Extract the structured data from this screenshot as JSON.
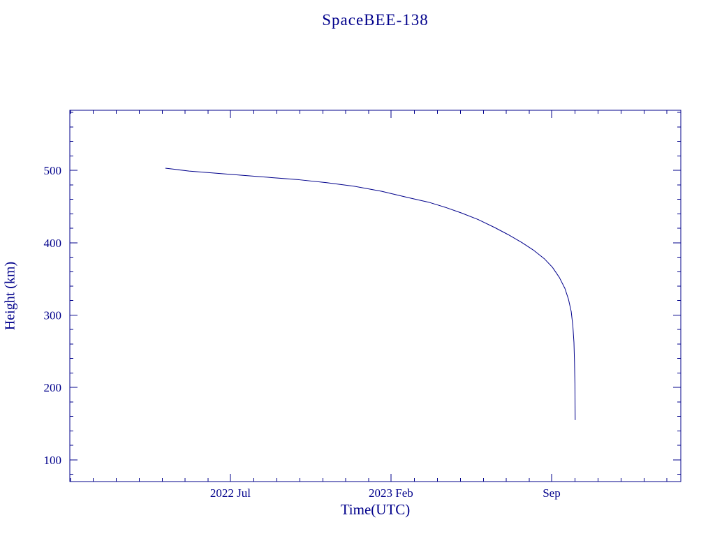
{
  "page": {
    "background": "#ffffff"
  },
  "chart_data": {
    "type": "line",
    "title": "SpaceBEE-138",
    "xlabel": "Time(UTC)",
    "ylabel": "Height (km)",
    "grid": false,
    "legend": "none",
    "colors": {
      "line": "#00008b",
      "axis": "#00008b",
      "text": "#00008b"
    },
    "xlim": [
      2021.917,
      2024.136
    ],
    "ylim": [
      70,
      583
    ],
    "x_major_ticks": [
      {
        "value": 2022.5,
        "label": "2022 Jul"
      },
      {
        "value": 2023.0833,
        "label": "2023 Feb"
      },
      {
        "value": 2023.6667,
        "label": "Sep"
      }
    ],
    "x_minor_interval_years": 0.08333,
    "y_major_ticks": [
      100,
      200,
      300,
      400,
      500
    ],
    "y_minor_step": 20,
    "series": [
      {
        "name": "orbital-height-km",
        "x": [
          2022.264,
          2022.35,
          2022.45,
          2022.55,
          2022.65,
          2022.75,
          2022.85,
          2022.95,
          2023.05,
          2023.083,
          2023.15,
          2023.22,
          2023.28,
          2023.34,
          2023.4,
          2023.46,
          2023.51,
          2023.56,
          2023.6,
          2023.64,
          2023.67,
          2023.695,
          2023.715,
          2023.728,
          2023.738,
          2023.744,
          2023.748,
          2023.75,
          2023.7515,
          2023.752,
          2023.7525
        ],
        "y": [
          503,
          499,
          496,
          493,
          490,
          487,
          483,
          478,
          471,
          468,
          462,
          456,
          449,
          441,
          432,
          421,
          411,
          400,
          390,
          378,
          366,
          352,
          337,
          322,
          305,
          285,
          262,
          235,
          205,
          178,
          155
        ]
      }
    ]
  }
}
